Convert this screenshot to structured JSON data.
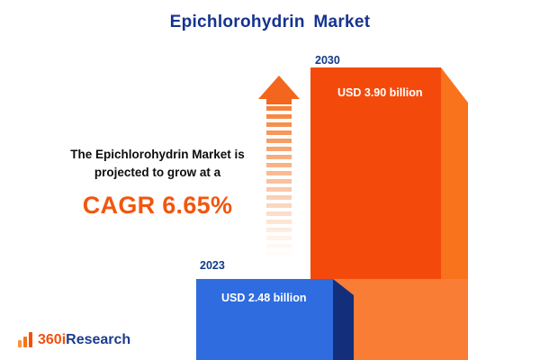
{
  "title": "Epichlorohydrin Market",
  "annotation": {
    "line1": "The Epichlorohydrin Market is",
    "line2": "projected to grow at a",
    "cagr": "CAGR 6.65%"
  },
  "logo": {
    "part1": "360i",
    "part2": "Research"
  },
  "colors": {
    "title_navy": "#15338f",
    "bar_2023_front": "#2e6cdf",
    "bar_2023_side": "#132e7b",
    "bar_2030_front": "#f34a0b",
    "bar_2030_side": "#f9731d",
    "bar_2030_lower": "#f97d35",
    "cagr_orange": "#f2560f",
    "arrow_orange": "#f4661e"
  },
  "chart_data": {
    "type": "bar",
    "title": "Epichlorohydrin Market",
    "categories": [
      "2023",
      "2030"
    ],
    "values": [
      2.48,
      3.9
    ],
    "value_labels": [
      "USD 2.48 billion",
      "USD 3.90 billion"
    ],
    "unit": "USD billion",
    "bar_colors": [
      "#2e6cdf",
      "#f34a0b"
    ],
    "annotation": "The Epichlorohydrin Market is projected to grow at a CAGR 6.65%",
    "cagr_percent": 6.65,
    "legend": "off",
    "grid": "off",
    "axes": "none (pictorial 3D bars, baseline at image bottom)"
  }
}
